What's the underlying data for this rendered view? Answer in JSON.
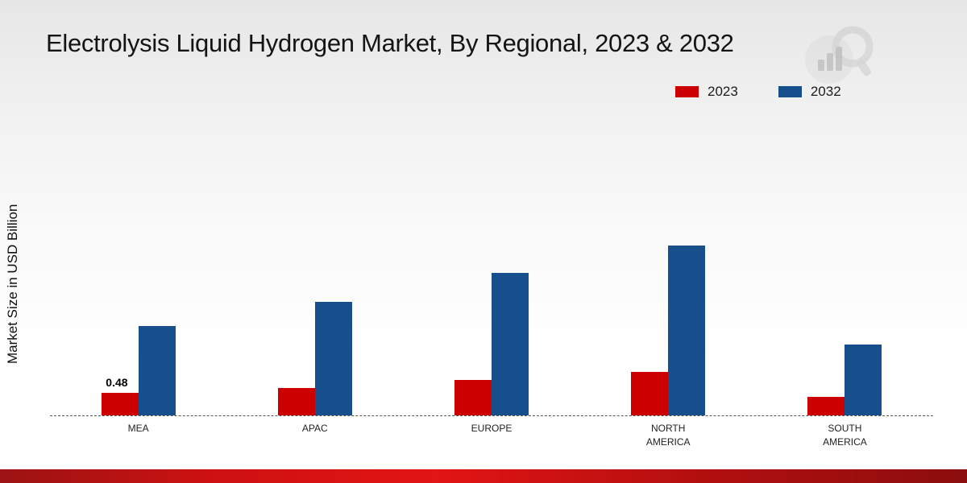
{
  "title": "Electrolysis Liquid Hydrogen Market, By Regional, 2023 & 2032",
  "ylabel": "Market Size in USD Billion",
  "legend": [
    {
      "label": "2023",
      "color": "#cc0000"
    },
    {
      "label": "2032",
      "color": "#174f8c"
    }
  ],
  "chart_data": {
    "type": "bar",
    "title": "Electrolysis Liquid Hydrogen Market, By Regional, 2023 & 2032",
    "xlabel": "",
    "ylabel": "Market Size in USD Billion",
    "categories": [
      "MEA",
      "APAC",
      "EUROPE",
      "NORTH\nAMERICA",
      "SOUTH\nAMERICA"
    ],
    "series": [
      {
        "name": "2023",
        "color": "#cc0000",
        "values": [
          0.48,
          0.58,
          0.74,
          0.91,
          0.39
        ]
      },
      {
        "name": "2032",
        "color": "#174f8c",
        "values": [
          1.87,
          2.38,
          2.98,
          3.56,
          1.49
        ]
      }
    ],
    "data_labels": [
      {
        "series": "2023",
        "category_index": 0,
        "text": "0.48"
      }
    ],
    "ylim": [
      0,
      6
    ],
    "grid": false,
    "baseline_style": "dashed",
    "legend_position": "top-right"
  }
}
